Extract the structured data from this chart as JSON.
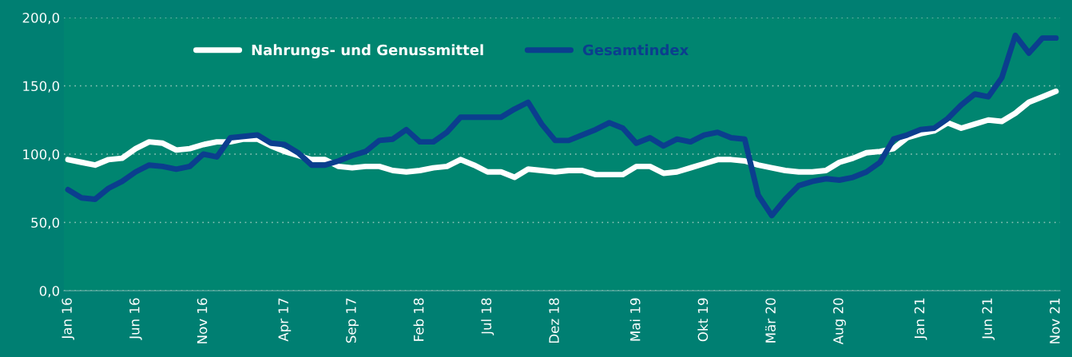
{
  "chart_data": {
    "type": "line",
    "categories": [
      "Jan 16",
      null,
      null,
      null,
      null,
      "Jun 16",
      null,
      null,
      null,
      null,
      "Nov 16",
      null,
      null,
      null,
      null,
      null,
      "Apr 17",
      null,
      null,
      null,
      null,
      "Sep 17",
      null,
      null,
      null,
      null,
      "Feb 18",
      null,
      null,
      null,
      null,
      "Jul 18",
      null,
      null,
      null,
      null,
      "Dez 18",
      null,
      null,
      null,
      null,
      null,
      "Mai 19",
      null,
      null,
      null,
      null,
      "Okt 19",
      null,
      null,
      null,
      null,
      "Mär 20",
      null,
      null,
      null,
      null,
      "Aug 20",
      null,
      null,
      null,
      null,
      null,
      "Jan 21",
      null,
      null,
      null,
      null,
      "Jun 21",
      null,
      null,
      null,
      null,
      "Nov 21"
    ],
    "series": [
      {
        "name": "Nahrungs- und Genussmittel",
        "color": "#ffffff",
        "values": [
          96,
          94,
          92,
          96,
          97,
          104,
          109,
          108,
          103,
          104,
          107,
          109,
          109,
          111,
          111,
          106,
          102,
          99,
          96,
          96,
          91,
          90,
          91,
          91,
          88,
          87,
          88,
          90,
          91,
          96,
          92,
          87,
          87,
          83,
          89,
          88,
          87,
          88,
          88,
          85,
          85,
          85,
          91,
          91,
          86,
          87,
          90,
          93,
          96,
          96,
          95,
          92,
          90,
          88,
          87,
          87,
          88,
          94,
          97,
          101,
          102,
          104,
          112,
          115,
          117,
          123,
          119,
          122,
          125,
          124,
          130,
          138,
          142,
          146
        ]
      },
      {
        "name": "Gesamtindex",
        "color": "#0b3e8e",
        "values": [
          74,
          68,
          67,
          75,
          80,
          87,
          92,
          91,
          89,
          91,
          100,
          98,
          112,
          113,
          114,
          108,
          107,
          101,
          92,
          92,
          95,
          99,
          102,
          110,
          111,
          118,
          109,
          109,
          116,
          127,
          127,
          127,
          127,
          133,
          138,
          122,
          110,
          110,
          114,
          118,
          123,
          119,
          108,
          112,
          106,
          111,
          109,
          114,
          116,
          112,
          111,
          70,
          55,
          67,
          77,
          80,
          82,
          81,
          83,
          87,
          94,
          111,
          114,
          118,
          119,
          126,
          136,
          144,
          142,
          156,
          187,
          174,
          185,
          185
        ]
      }
    ],
    "ylim": [
      0,
      200
    ],
    "yticks": [
      {
        "value": 0,
        "label": "0,0"
      },
      {
        "value": 50,
        "label": "50,0"
      },
      {
        "value": 100,
        "label": "100,0"
      },
      {
        "value": 150,
        "label": "150,0"
      },
      {
        "value": 200,
        "label": "200,0"
      }
    ],
    "grid": "y",
    "legend": "top",
    "marker": "none",
    "line_style": "solid"
  }
}
